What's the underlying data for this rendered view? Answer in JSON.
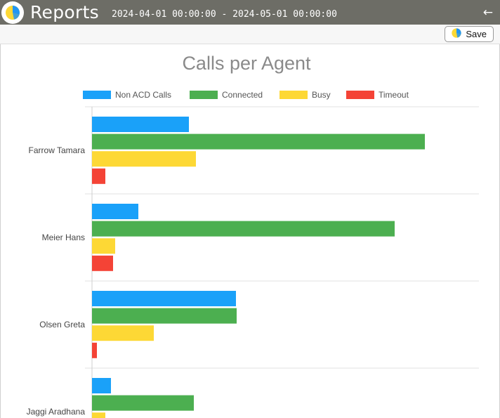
{
  "header": {
    "title": "Reports",
    "date_range": "2024-04-01 00:00:00 - 2024-05-01 00:00:00",
    "back_icon": "arrow-left-icon",
    "logo_icon": "pie-chart-icon"
  },
  "toolbar": {
    "save_label": "Save",
    "save_icon": "pie-chart-icon"
  },
  "colors": {
    "header_bg": "#6d6d66",
    "logo_blue": "#2196f3",
    "logo_yellow": "#fdd835"
  },
  "chart_data": {
    "type": "bar",
    "orientation": "horizontal",
    "title": "Calls per Agent",
    "legend_position": "top",
    "grid": true,
    "categories": [
      "Farrow Tamara",
      "Meier Hans",
      "Olsen Greta",
      "Jaggi Aradhana"
    ],
    "series": [
      {
        "name": "Non ACD Calls",
        "color": "#1aa1f9",
        "values": [
          138,
          66,
          205,
          27
        ]
      },
      {
        "name": "Connected",
        "color": "#4caf50",
        "values": [
          474,
          431,
          206,
          145
        ]
      },
      {
        "name": "Busy",
        "color": "#fdd835",
        "values": [
          148,
          33,
          88,
          19
        ]
      },
      {
        "name": "Timeout",
        "color": "#f44336",
        "values": [
          19,
          30,
          7,
          0
        ]
      }
    ],
    "xlim": [
      0,
      551
    ]
  }
}
